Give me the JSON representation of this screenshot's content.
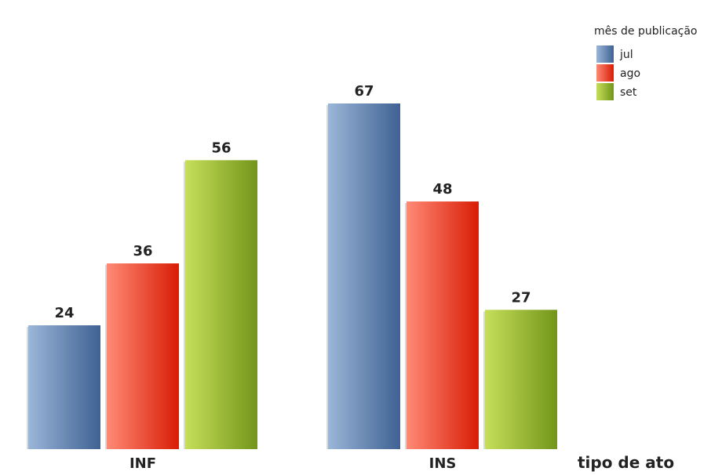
{
  "chart_data": {
    "type": "bar",
    "categories": [
      "INF",
      "INS"
    ],
    "series": [
      {
        "name": "jul",
        "values": [
          24,
          67
        ],
        "color": "#4f77a8"
      },
      {
        "name": "ago",
        "values": [
          36,
          48
        ],
        "color": "#e83a22"
      },
      {
        "name": "set",
        "values": [
          56,
          27
        ],
        "color": "#8fb22e"
      }
    ],
    "xlabel": "tipo de ato",
    "ylabel": "",
    "ylim": [
      0,
      67
    ],
    "grid": false,
    "legend": {
      "title": "mês de publicação",
      "position": "top-right"
    }
  }
}
